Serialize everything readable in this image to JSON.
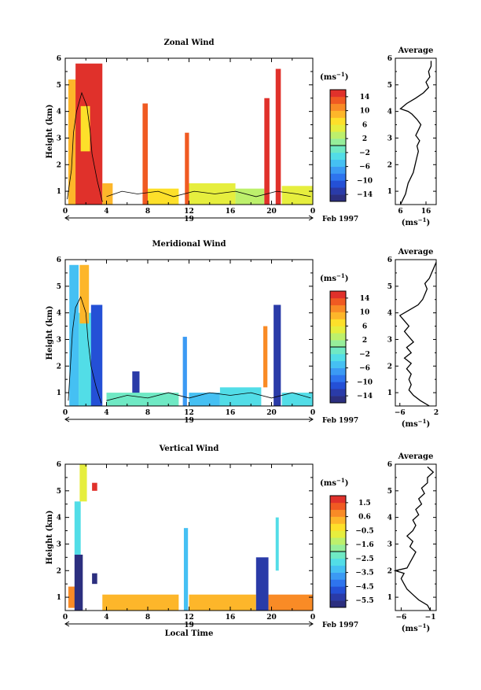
{
  "chart_data": [
    {
      "type": "heatmap",
      "title": "Zonal Wind",
      "ylabel": "Height (km)",
      "x_ticks": [
        "0",
        "4",
        "8",
        "12",
        "16",
        "20",
        "0"
      ],
      "y_ticks": [
        "1",
        "2",
        "3",
        "4",
        "5",
        "6"
      ],
      "xlim": [
        0,
        24
      ],
      "ylim": [
        0.5,
        6
      ],
      "day_label": "19",
      "date_label": "Feb 1997",
      "colorbar": {
        "unit_base": "(ms",
        "unit_exp": "−1",
        "unit_close": ")",
        "ticks": [
          "14",
          "10",
          "6",
          "2",
          "−2",
          "−6",
          "−10",
          "−14"
        ],
        "range": [
          -16,
          16
        ],
        "colors": [
          "#2c2f7f",
          "#2a3ba8",
          "#2450d6",
          "#2e74ee",
          "#3b9af4",
          "#45c0f3",
          "#52dde7",
          "#6fe9c4",
          "#96ee9a",
          "#bdf06c",
          "#e6ee3e",
          "#fde02a",
          "#fdb62a",
          "#f98b26",
          "#f05a22",
          "#e0312b"
        ]
      },
      "average": {
        "title": "Average",
        "x_ticks": [
          "6",
          "16"
        ],
        "xlim": [
          4,
          20
        ],
        "xlabel_base": "(ms",
        "xlabel_exp": "−1",
        "xlabel_close": ")",
        "y_ticks": [
          "1",
          "2",
          "3",
          "4",
          "5",
          "6"
        ],
        "height": [
          0.5,
          0.7,
          0.9,
          1.1,
          1.3,
          1.5,
          1.7,
          1.9,
          2.1,
          2.3,
          2.5,
          2.7,
          2.9,
          3.1,
          3.3,
          3.5,
          3.7,
          3.9,
          4.0,
          4.1,
          4.3,
          4.5,
          4.7,
          4.9,
          5.1,
          5.3,
          5.5,
          5.7,
          5.9
        ],
        "values": [
          6,
          7,
          8,
          8.5,
          9,
          10,
          11,
          11.5,
          12,
          12.5,
          13,
          12.5,
          13.5,
          12,
          13,
          14,
          12.5,
          10.5,
          9,
          6,
          8.5,
          12,
          15,
          17,
          16,
          17.5,
          17,
          18,
          18
        ]
      },
      "colored_regions": [
        {
          "t0": 0.3,
          "t1": 1.2,
          "z0": 0.5,
          "z1": 5.2,
          "value": 8
        },
        {
          "t0": 1.0,
          "t1": 3.6,
          "z0": 0.5,
          "z1": 5.8,
          "value": 14
        },
        {
          "t0": 1.5,
          "t1": 2.4,
          "z0": 2.5,
          "z1": 4.2,
          "value": 6
        },
        {
          "t0": 3.6,
          "t1": 4.6,
          "z0": 0.5,
          "z1": 1.3,
          "value": 9
        },
        {
          "t0": 7.5,
          "t1": 8.0,
          "z0": 0.5,
          "z1": 4.3,
          "value": 12
        },
        {
          "t0": 8.0,
          "t1": 11.0,
          "z0": 0.5,
          "z1": 1.1,
          "value": 6
        },
        {
          "t0": 11.6,
          "t1": 12.0,
          "z0": 0.5,
          "z1": 3.2,
          "value": 12
        },
        {
          "t0": 12.0,
          "t1": 16.5,
          "z0": 0.5,
          "z1": 1.3,
          "value": 4
        },
        {
          "t0": 16.5,
          "t1": 19.3,
          "z0": 0.5,
          "z1": 1.1,
          "value": 2
        },
        {
          "t0": 19.3,
          "t1": 19.8,
          "z0": 0.5,
          "z1": 4.5,
          "value": 14
        },
        {
          "t0": 20.4,
          "t1": 20.9,
          "z0": 0.5,
          "z1": 5.6,
          "value": 14
        },
        {
          "t0": 21.0,
          "t1": 24.0,
          "z0": 0.5,
          "z1": 1.2,
          "value": 5
        }
      ],
      "contour_lines": [
        [
          [
            0.2,
            0.7
          ],
          [
            0.6,
            1.8
          ],
          [
            0.8,
            3.2
          ],
          [
            1.1,
            4.0
          ],
          [
            1.6,
            4.7
          ],
          [
            2.1,
            4.2
          ],
          [
            2.4,
            3.3
          ],
          [
            2.6,
            2.4
          ],
          [
            3.1,
            1.4
          ],
          [
            3.6,
            0.6
          ]
        ],
        [
          [
            4.0,
            0.8
          ],
          [
            5.5,
            1.0
          ],
          [
            7.0,
            0.9
          ],
          [
            9.0,
            1.0
          ],
          [
            10.5,
            0.8
          ],
          [
            12.5,
            1.0
          ],
          [
            14.5,
            0.9
          ],
          [
            16.5,
            1.0
          ],
          [
            18.5,
            0.8
          ],
          [
            20.5,
            1.0
          ],
          [
            22.5,
            0.9
          ],
          [
            23.8,
            0.8
          ]
        ]
      ]
    },
    {
      "type": "heatmap",
      "title": "Meridional Wind",
      "ylabel": "Height (km)",
      "x_ticks": [
        "0",
        "4",
        "8",
        "12",
        "16",
        "20",
        "0"
      ],
      "y_ticks": [
        "1",
        "2",
        "3",
        "4",
        "5",
        "6"
      ],
      "xlim": [
        0,
        24
      ],
      "ylim": [
        0.5,
        6
      ],
      "day_label": "19",
      "date_label": "Feb 1997",
      "colorbar": {
        "unit_base": "(ms",
        "unit_exp": "−1",
        "unit_close": ")",
        "ticks": [
          "14",
          "10",
          "6",
          "2",
          "−2",
          "−6",
          "−10",
          "−14"
        ],
        "range": [
          -16,
          16
        ],
        "colors": [
          "#2c2f7f",
          "#2a3ba8",
          "#2450d6",
          "#2e74ee",
          "#3b9af4",
          "#45c0f3",
          "#52dde7",
          "#6fe9c4",
          "#96ee9a",
          "#bdf06c",
          "#e6ee3e",
          "#fde02a",
          "#fdb62a",
          "#f98b26",
          "#f05a22",
          "#e0312b"
        ]
      },
      "average": {
        "title": "Average",
        "x_ticks": [
          "−6",
          "2"
        ],
        "xlim": [
          -7,
          2
        ],
        "xlabel_base": "(ms",
        "xlabel_exp": "−1",
        "xlabel_close": ")",
        "y_ticks": [
          "1",
          "2",
          "3",
          "4",
          "5",
          "6"
        ],
        "height": [
          0.5,
          0.7,
          0.9,
          1.1,
          1.3,
          1.5,
          1.7,
          1.9,
          2.1,
          2.3,
          2.5,
          2.7,
          2.9,
          3.1,
          3.3,
          3.5,
          3.7,
          3.9,
          4.1,
          4.3,
          4.5,
          4.7,
          4.9,
          5.1,
          5.3,
          5.5,
          5.7,
          5.9
        ],
        "values": [
          0.5,
          -1.5,
          -3,
          -4,
          -3.5,
          -4,
          -3.5,
          -4.5,
          -3.5,
          -5,
          -3.5,
          -4.5,
          -3,
          -4,
          -5,
          -4,
          -5,
          -6,
          -4,
          -2,
          -1,
          -0.5,
          0,
          -0.5,
          0.5,
          1,
          1.5,
          2
        ]
      },
      "colored_regions": [
        {
          "t0": 0.4,
          "t1": 1.3,
          "z0": 0.5,
          "z1": 5.8,
          "value": -6
        },
        {
          "t0": 1.3,
          "t1": 2.6,
          "z0": 0.5,
          "z1": 4.0,
          "value": -3
        },
        {
          "t0": 1.4,
          "t1": 2.3,
          "z0": 3.6,
          "z1": 5.8,
          "value": 8
        },
        {
          "t0": 2.5,
          "t1": 3.6,
          "z0": 0.5,
          "z1": 4.3,
          "value": -11
        },
        {
          "t0": 6.5,
          "t1": 7.2,
          "z0": 0.5,
          "z1": 1.8,
          "value": -14
        },
        {
          "t0": 4.0,
          "t1": 11.0,
          "z0": 0.5,
          "z1": 1.0,
          "value": -2
        },
        {
          "t0": 11.4,
          "t1": 11.8,
          "z0": 0.5,
          "z1": 3.1,
          "value": -8
        },
        {
          "t0": 12.0,
          "t1": 15.0,
          "z0": 0.5,
          "z1": 1.0,
          "value": -5
        },
        {
          "t0": 15.0,
          "t1": 19.0,
          "z0": 0.5,
          "z1": 1.2,
          "value": -3
        },
        {
          "t0": 19.2,
          "t1": 19.6,
          "z0": 1.2,
          "z1": 3.5,
          "value": 10
        },
        {
          "t0": 20.2,
          "t1": 20.9,
          "z0": 0.5,
          "z1": 4.3,
          "value": -13
        },
        {
          "t0": 21.0,
          "t1": 24.0,
          "z0": 0.5,
          "z1": 1.0,
          "value": -3
        }
      ],
      "contour_lines": [
        [
          [
            0.3,
            0.7
          ],
          [
            0.5,
            2.0
          ],
          [
            0.7,
            3.3
          ],
          [
            1.0,
            4.2
          ],
          [
            1.5,
            4.6
          ],
          [
            2.0,
            4.0
          ],
          [
            2.2,
            3.0
          ],
          [
            2.5,
            2.0
          ],
          [
            3.0,
            1.2
          ],
          [
            3.5,
            0.6
          ]
        ],
        [
          [
            4.0,
            0.7
          ],
          [
            6.0,
            0.9
          ],
          [
            8.0,
            0.8
          ],
          [
            10.0,
            1.0
          ],
          [
            12.0,
            0.8
          ],
          [
            14.0,
            1.0
          ],
          [
            16.0,
            0.9
          ],
          [
            18.0,
            1.0
          ],
          [
            20.0,
            0.8
          ],
          [
            22.0,
            1.0
          ],
          [
            23.8,
            0.8
          ]
        ]
      ]
    },
    {
      "type": "heatmap",
      "title": "Vertical Wind",
      "ylabel": "Height (km)",
      "xlabel": "Local Time",
      "x_ticks": [
        "0",
        "4",
        "8",
        "12",
        "16",
        "20",
        "0"
      ],
      "y_ticks": [
        "1",
        "2",
        "3",
        "4",
        "5",
        "6"
      ],
      "xlim": [
        0,
        24
      ],
      "ylim": [
        0.5,
        6
      ],
      "day_label": "19",
      "date_label": "Feb 1997",
      "colorbar": {
        "unit_base": "(ms",
        "unit_exp": "−1",
        "unit_close": ")",
        "ticks": [
          "1.5",
          "0.6",
          "−0.5",
          "−1.6",
          "−2.5",
          "−3.5",
          "−4.5",
          "−5.5"
        ],
        "range": [
          -6.0,
          2.0
        ],
        "colors": [
          "#2c2f7f",
          "#2a3ba8",
          "#2450d6",
          "#2e74ee",
          "#3b9af4",
          "#45c0f3",
          "#52dde7",
          "#6fe9c4",
          "#96ee9a",
          "#bdf06c",
          "#e6ee3e",
          "#fde02a",
          "#fdb62a",
          "#f98b26",
          "#f05a22",
          "#e0312b"
        ]
      },
      "average": {
        "title": "Average",
        "x_ticks": [
          "−6",
          "−1"
        ],
        "xlim": [
          -7,
          0
        ],
        "xlabel_base": "(ms",
        "xlabel_exp": "−1",
        "xlabel_close": ")",
        "y_ticks": [
          "1",
          "2",
          "3",
          "4",
          "5",
          "6"
        ],
        "height": [
          0.5,
          0.7,
          0.9,
          1.1,
          1.3,
          1.5,
          1.7,
          1.9,
          2.0,
          2.1,
          2.3,
          2.5,
          2.7,
          2.9,
          3.1,
          3.3,
          3.5,
          3.7,
          3.9,
          4.1,
          4.3,
          4.5,
          4.7,
          4.9,
          5.1,
          5.3,
          5.5,
          5.7,
          5.9
        ],
        "values": [
          -1,
          -1.5,
          -3,
          -4,
          -5,
          -5.5,
          -6,
          -5.5,
          -7,
          -5,
          -4.5,
          -4,
          -3.5,
          -4.5,
          -4,
          -5,
          -4,
          -3.5,
          -4,
          -3,
          -3.5,
          -2.5,
          -3,
          -2,
          -2.5,
          -1.5,
          -1.5,
          -0.5,
          -1.5
        ]
      },
      "colored_regions": [
        {
          "t0": 0.3,
          "t1": 1.3,
          "z0": 0.6,
          "z1": 1.4,
          "value": 0.5
        },
        {
          "t0": 0.9,
          "t1": 1.7,
          "z0": 0.5,
          "z1": 2.6,
          "value": -5.6
        },
        {
          "t0": 0.9,
          "t1": 1.5,
          "z0": 2.6,
          "z1": 4.6,
          "value": -3
        },
        {
          "t0": 1.4,
          "t1": 2.1,
          "z0": 4.6,
          "z1": 6.0,
          "value": -1
        },
        {
          "t0": 2.6,
          "t1": 3.1,
          "z0": 5.0,
          "z1": 5.3,
          "value": 1.5
        },
        {
          "t0": 2.6,
          "t1": 3.1,
          "z0": 1.5,
          "z1": 1.9,
          "value": -5.6
        },
        {
          "t0": 3.6,
          "t1": 11.0,
          "z0": 0.5,
          "z1": 1.1,
          "value": 0.4
        },
        {
          "t0": 11.5,
          "t1": 11.9,
          "z0": 0.5,
          "z1": 3.6,
          "value": -3.5
        },
        {
          "t0": 12.0,
          "t1": 18.5,
          "z0": 0.5,
          "z1": 1.1,
          "value": 0.4
        },
        {
          "t0": 18.5,
          "t1": 19.7,
          "z0": 0.5,
          "z1": 2.5,
          "value": -5.5
        },
        {
          "t0": 19.7,
          "t1": 24.0,
          "z0": 0.5,
          "z1": 1.1,
          "value": 0.5
        },
        {
          "t0": 20.4,
          "t1": 20.7,
          "z0": 2.0,
          "z1": 4.0,
          "value": -3
        }
      ],
      "contour_lines": []
    }
  ]
}
